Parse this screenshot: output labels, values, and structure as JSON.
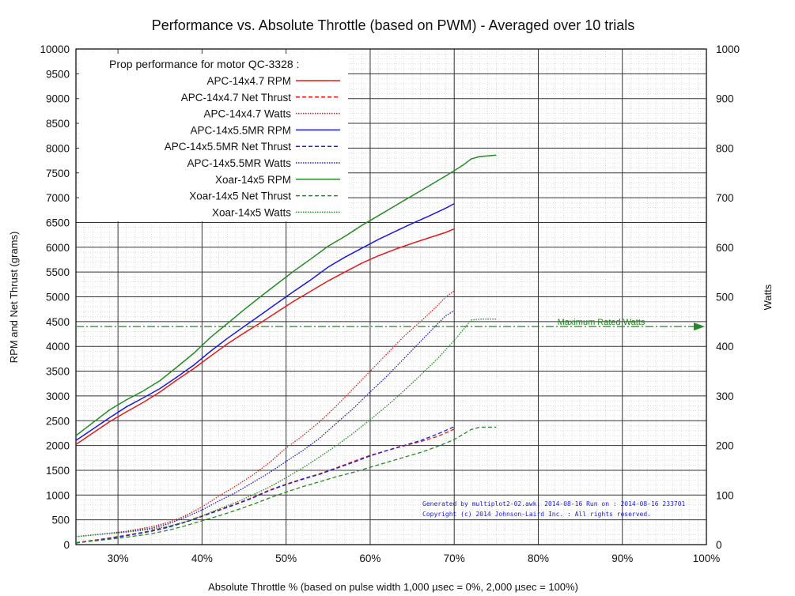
{
  "chart_data": {
    "type": "line",
    "title": "Performance vs. Absolute Throttle (based on PWM) - Averaged over 10 trials",
    "xlabel": "Absolute Throttle % (based on pulse width 1,000 µsec = 0%, 2,000 µsec = 100%)",
    "ylabel": "RPM and Net Thrust (grams)",
    "y2label": "Watts",
    "xlim": [
      25,
      100
    ],
    "ylim": [
      0,
      10000
    ],
    "y2lim": [
      0,
      1000
    ],
    "x_ticks": [
      "30%",
      "40%",
      "50%",
      "60%",
      "70%",
      "80%",
      "90%",
      "100%"
    ],
    "x_tick_values": [
      30,
      40,
      50,
      60,
      70,
      80,
      90,
      100
    ],
    "y_ticks": [
      "0",
      "500",
      "1000",
      "1500",
      "2000",
      "2500",
      "3000",
      "3500",
      "4000",
      "4500",
      "5000",
      "5500",
      "6000",
      "6500",
      "7000",
      "7500",
      "8000",
      "8500",
      "9000",
      "9500",
      "10000"
    ],
    "y_tick_values": [
      0,
      500,
      1000,
      1500,
      2000,
      2500,
      3000,
      3500,
      4000,
      4500,
      5000,
      5500,
      6000,
      6500,
      7000,
      7500,
      8000,
      8500,
      9000,
      9500,
      10000
    ],
    "y2_ticks": [
      "0",
      "100",
      "200",
      "300",
      "400",
      "500",
      "600",
      "700",
      "800",
      "900",
      "1000"
    ],
    "y2_tick_values": [
      0,
      100,
      200,
      300,
      400,
      500,
      600,
      700,
      800,
      900,
      1000
    ],
    "grid": true,
    "legend": {
      "placement": "top-left",
      "header": "Prop performance for motor QC-3328 :"
    },
    "series": [
      {
        "name": "APC-14x4.7 RPM",
        "axis": "left",
        "color": "#e41a1a",
        "style": "solid",
        "points": [
          [
            25,
            2020
          ],
          [
            27,
            2250
          ],
          [
            29,
            2480
          ],
          [
            31,
            2680
          ],
          [
            33,
            2870
          ],
          [
            35,
            3080
          ],
          [
            37,
            3320
          ],
          [
            39,
            3550
          ],
          [
            41,
            3800
          ],
          [
            43,
            4050
          ],
          [
            45,
            4270
          ],
          [
            47,
            4480
          ],
          [
            49,
            4700
          ],
          [
            51,
            4920
          ],
          [
            53,
            5120
          ],
          [
            55,
            5320
          ],
          [
            57,
            5500
          ],
          [
            59,
            5680
          ],
          [
            61,
            5830
          ],
          [
            63,
            5960
          ],
          [
            65,
            6080
          ],
          [
            67,
            6190
          ],
          [
            69,
            6300
          ],
          [
            70,
            6370
          ]
        ]
      },
      {
        "name": "APC-14x4.7 Net Thrust",
        "axis": "left",
        "color": "#e41a1a",
        "style": "dashed",
        "points": [
          [
            25,
            40
          ],
          [
            28,
            110
          ],
          [
            31,
            190
          ],
          [
            34,
            280
          ],
          [
            36,
            360
          ],
          [
            38,
            460
          ],
          [
            40,
            580
          ],
          [
            42,
            700
          ],
          [
            44,
            820
          ],
          [
            46,
            950
          ],
          [
            48,
            1100
          ],
          [
            50,
            1220
          ],
          [
            52,
            1330
          ],
          [
            54,
            1430
          ],
          [
            56,
            1550
          ],
          [
            58,
            1680
          ],
          [
            60,
            1800
          ],
          [
            62,
            1900
          ],
          [
            64,
            1990
          ],
          [
            66,
            2080
          ],
          [
            68,
            2180
          ],
          [
            70,
            2330
          ]
        ]
      },
      {
        "name": "APC-14x4.7 Watts",
        "axis": "right",
        "color": "#e41a1a",
        "style": "dotted",
        "points": [
          [
            25,
            16
          ],
          [
            28,
            21
          ],
          [
            31,
            27
          ],
          [
            34,
            36
          ],
          [
            36,
            45
          ],
          [
            38,
            58
          ],
          [
            40,
            76
          ],
          [
            42,
            98
          ],
          [
            44,
            118
          ],
          [
            46,
            140
          ],
          [
            48,
            165
          ],
          [
            50,
            195
          ],
          [
            52,
            220
          ],
          [
            54,
            248
          ],
          [
            56,
            280
          ],
          [
            58,
            315
          ],
          [
            60,
            350
          ],
          [
            62,
            385
          ],
          [
            64,
            420
          ],
          [
            66,
            450
          ],
          [
            68,
            482
          ],
          [
            69,
            500
          ],
          [
            70,
            512
          ]
        ]
      },
      {
        "name": "APC-14x5.5MR RPM",
        "axis": "left",
        "color": "#1a1ae0",
        "style": "solid",
        "points": [
          [
            25,
            2100
          ],
          [
            27,
            2330
          ],
          [
            29,
            2560
          ],
          [
            31,
            2780
          ],
          [
            33,
            2960
          ],
          [
            35,
            3150
          ],
          [
            37,
            3380
          ],
          [
            39,
            3620
          ],
          [
            41,
            3900
          ],
          [
            43,
            4160
          ],
          [
            45,
            4400
          ],
          [
            47,
            4640
          ],
          [
            49,
            4880
          ],
          [
            51,
            5120
          ],
          [
            53,
            5350
          ],
          [
            55,
            5600
          ],
          [
            57,
            5800
          ],
          [
            59,
            5980
          ],
          [
            61,
            6160
          ],
          [
            63,
            6320
          ],
          [
            65,
            6480
          ],
          [
            67,
            6630
          ],
          [
            69,
            6790
          ],
          [
            70,
            6880
          ]
        ]
      },
      {
        "name": "APC-14x5.5MR Net Thrust",
        "axis": "left",
        "color": "#1a1ae0",
        "style": "dashed",
        "points": [
          [
            25,
            30
          ],
          [
            28,
            100
          ],
          [
            31,
            180
          ],
          [
            34,
            270
          ],
          [
            36,
            350
          ],
          [
            38,
            450
          ],
          [
            40,
            570
          ],
          [
            42,
            690
          ],
          [
            44,
            810
          ],
          [
            46,
            940
          ],
          [
            48,
            1090
          ],
          [
            50,
            1210
          ],
          [
            52,
            1320
          ],
          [
            54,
            1420
          ],
          [
            56,
            1540
          ],
          [
            58,
            1660
          ],
          [
            60,
            1790
          ],
          [
            62,
            1900
          ],
          [
            64,
            2000
          ],
          [
            66,
            2100
          ],
          [
            68,
            2230
          ],
          [
            70,
            2380
          ]
        ]
      },
      {
        "name": "APC-14x5.5MR Watts",
        "axis": "right",
        "color": "#1a1ae0",
        "style": "dotted",
        "points": [
          [
            25,
            16
          ],
          [
            28,
            21
          ],
          [
            31,
            26
          ],
          [
            34,
            33
          ],
          [
            36,
            42
          ],
          [
            38,
            55
          ],
          [
            40,
            70
          ],
          [
            42,
            88
          ],
          [
            44,
            105
          ],
          [
            46,
            125
          ],
          [
            48,
            145
          ],
          [
            50,
            168
          ],
          [
            52,
            190
          ],
          [
            54,
            215
          ],
          [
            56,
            245
          ],
          [
            58,
            275
          ],
          [
            60,
            308
          ],
          [
            62,
            340
          ],
          [
            64,
            375
          ],
          [
            66,
            410
          ],
          [
            68,
            445
          ],
          [
            69,
            462
          ],
          [
            70,
            472
          ]
        ]
      },
      {
        "name": "Xoar-14x5 RPM",
        "axis": "left",
        "color": "#228b22",
        "style": "solid",
        "points": [
          [
            25,
            2200
          ],
          [
            27,
            2460
          ],
          [
            29,
            2720
          ],
          [
            31,
            2920
          ],
          [
            33,
            3100
          ],
          [
            35,
            3310
          ],
          [
            37,
            3580
          ],
          [
            39,
            3860
          ],
          [
            41,
            4180
          ],
          [
            43,
            4460
          ],
          [
            45,
            4740
          ],
          [
            47,
            5010
          ],
          [
            49,
            5270
          ],
          [
            51,
            5530
          ],
          [
            53,
            5770
          ],
          [
            55,
            6020
          ],
          [
            57,
            6220
          ],
          [
            59,
            6440
          ],
          [
            61,
            6640
          ],
          [
            63,
            6840
          ],
          [
            65,
            7040
          ],
          [
            67,
            7240
          ],
          [
            69,
            7440
          ],
          [
            71,
            7650
          ],
          [
            72,
            7780
          ],
          [
            73,
            7830
          ],
          [
            75,
            7860
          ]
        ]
      },
      {
        "name": "Xoar-14x5 Net Thrust",
        "axis": "left",
        "color": "#228b22",
        "style": "dashed",
        "points": [
          [
            25,
            40
          ],
          [
            28,
            90
          ],
          [
            31,
            150
          ],
          [
            34,
            220
          ],
          [
            36,
            290
          ],
          [
            38,
            380
          ],
          [
            40,
            480
          ],
          [
            42,
            580
          ],
          [
            44,
            690
          ],
          [
            46,
            810
          ],
          [
            48,
            940
          ],
          [
            50,
            1060
          ],
          [
            52,
            1170
          ],
          [
            54,
            1270
          ],
          [
            56,
            1370
          ],
          [
            58,
            1460
          ],
          [
            60,
            1560
          ],
          [
            62,
            1660
          ],
          [
            64,
            1760
          ],
          [
            66,
            1860
          ],
          [
            68,
            1980
          ],
          [
            70,
            2120
          ],
          [
            72,
            2320
          ],
          [
            73,
            2370
          ],
          [
            75,
            2370
          ]
        ]
      },
      {
        "name": "Xoar-14x5 Watts",
        "axis": "right",
        "color": "#228b22",
        "style": "dotted",
        "points": [
          [
            25,
            16
          ],
          [
            28,
            21
          ],
          [
            31,
            25
          ],
          [
            34,
            31
          ],
          [
            36,
            37
          ],
          [
            38,
            46
          ],
          [
            40,
            58
          ],
          [
            42,
            72
          ],
          [
            44,
            85
          ],
          [
            46,
            100
          ],
          [
            48,
            116
          ],
          [
            50,
            135
          ],
          [
            52,
            155
          ],
          [
            54,
            177
          ],
          [
            56,
            200
          ],
          [
            58,
            225
          ],
          [
            60,
            252
          ],
          [
            62,
            280
          ],
          [
            64,
            310
          ],
          [
            66,
            342
          ],
          [
            68,
            375
          ],
          [
            70,
            412
          ],
          [
            71,
            432
          ],
          [
            72,
            453
          ],
          [
            73,
            455
          ],
          [
            75,
            455
          ]
        ]
      }
    ],
    "reference_line": {
      "label": "Maximum Rated Watts",
      "axis": "right",
      "value": 440,
      "color": "#228b22"
    },
    "footnote": [
      "Generated by multiplot2-02.awk: 2014-08-16 Run on : 2014-08-16 233701",
      "Copyright (c) 2014 Johnson-Laird Inc. : All rights reserved."
    ]
  }
}
